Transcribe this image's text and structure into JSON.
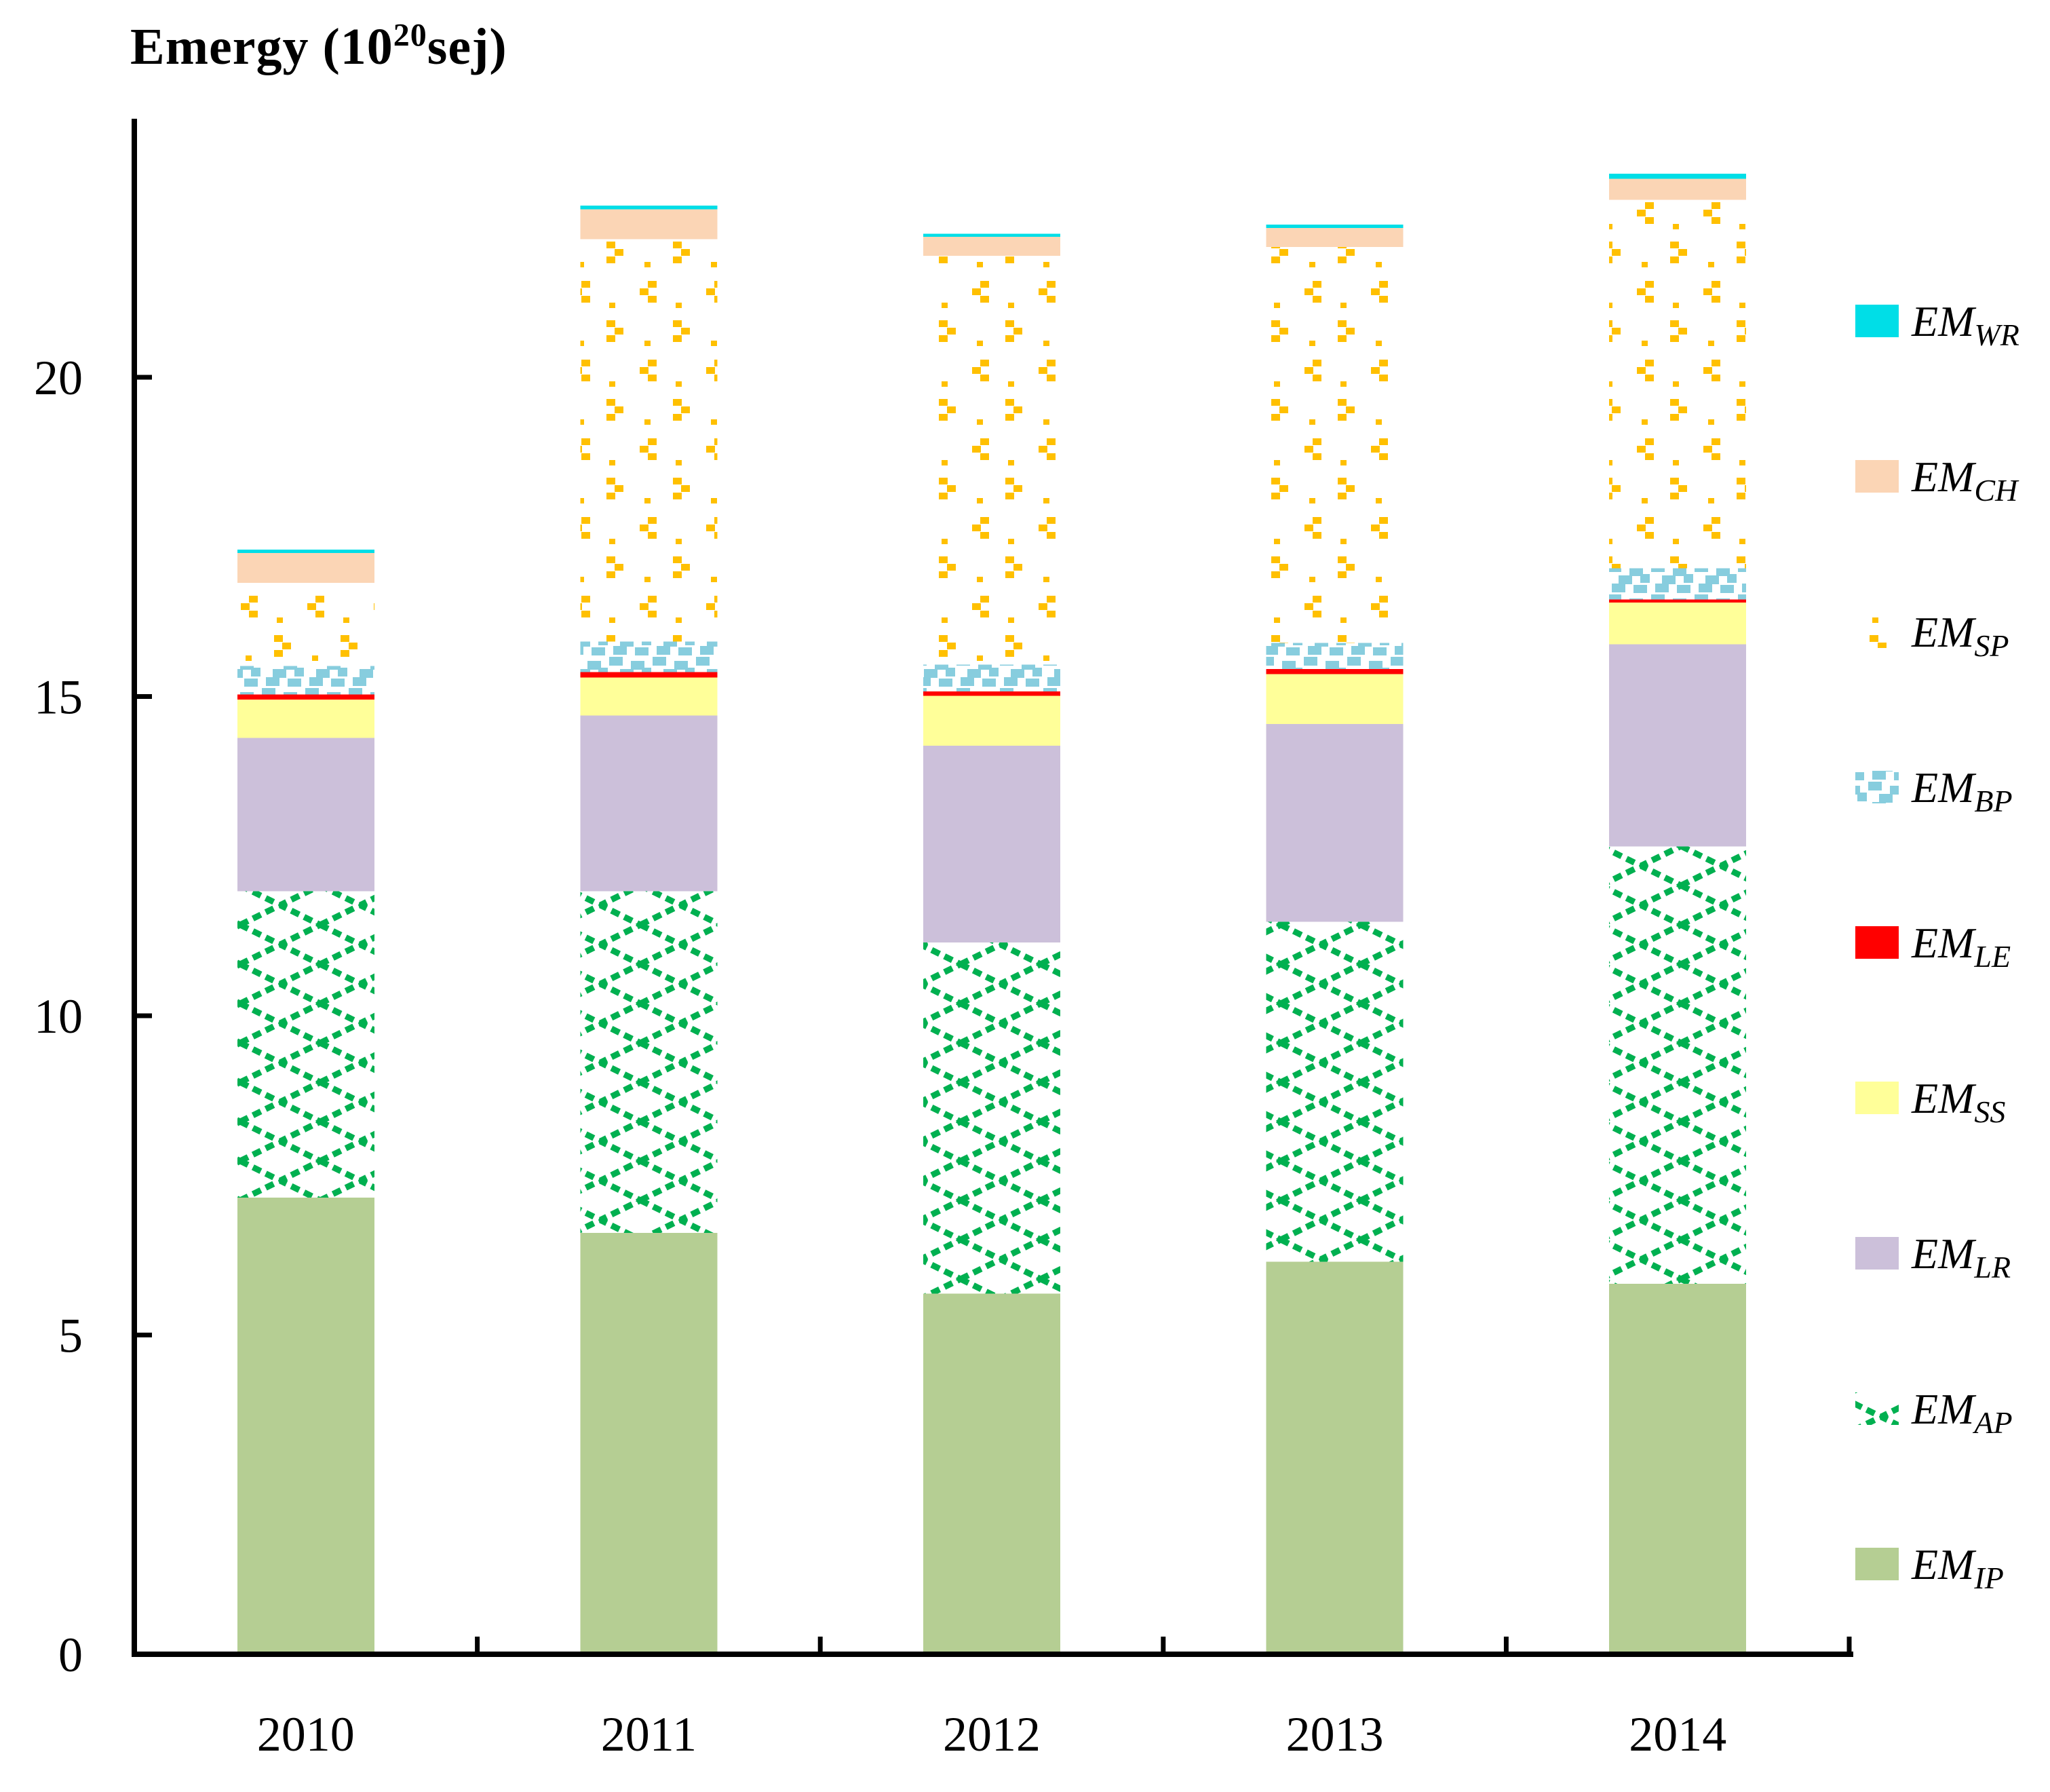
{
  "title": {
    "prefix": "Emergy (10",
    "exponent": "20",
    "suffix": "sej)"
  },
  "axis": {
    "ytick_labels": [
      "0",
      "5",
      "10",
      "15",
      "20"
    ],
    "yticks": [
      0,
      5,
      10,
      15,
      20
    ]
  },
  "chart_data": {
    "type": "bar",
    "subtype": "stacked-vertical",
    "title": "Emergy (10^20 sej)",
    "categories": [
      "2010",
      "2011",
      "2012",
      "2013",
      "2014"
    ],
    "ylim": [
      0,
      24
    ],
    "yticks": [
      0,
      5,
      10,
      15,
      20
    ],
    "grid": false,
    "legend_position": "right",
    "series_bottom_to_top": [
      {
        "name": "EM_IP",
        "label_main": "EM",
        "label_sub": "IP",
        "fill": "solid",
        "color": "#b5ce93",
        "values": [
          7.15,
          6.6,
          5.65,
          6.15,
          5.8
        ]
      },
      {
        "name": "EM_AP",
        "label_main": "EM",
        "label_sub": "AP",
        "fill": "crosshatch",
        "color": "#00b050",
        "values": [
          4.8,
          5.35,
          5.5,
          5.32,
          6.85
        ]
      },
      {
        "name": "EM_LR",
        "label_main": "EM",
        "label_sub": "LR",
        "fill": "solid",
        "color": "#ccc0da",
        "values": [
          2.4,
          2.75,
          3.08,
          3.1,
          3.17
        ]
      },
      {
        "name": "EM_SS",
        "label_main": "EM",
        "label_sub": "SS",
        "fill": "solid",
        "color": "#ffff99",
        "values": [
          0.6,
          0.6,
          0.78,
          0.78,
          0.65
        ]
      },
      {
        "name": "EM_LE",
        "label_main": "EM",
        "label_sub": "LE",
        "fill": "solid",
        "color": "#ff0000",
        "values": [
          0.08,
          0.08,
          0.07,
          0.08,
          0.05
        ]
      },
      {
        "name": "EM_BP",
        "label_main": "EM",
        "label_sub": "BP",
        "fill": "dots-bp",
        "color": "#87cdde",
        "values": [
          0.45,
          0.48,
          0.42,
          0.41,
          0.49
        ]
      },
      {
        "name": "EM_SP",
        "label_main": "EM",
        "label_sub": "SP",
        "fill": "dots-sp",
        "color": "#ffc000",
        "values": [
          1.3,
          6.3,
          6.4,
          6.2,
          5.77
        ]
      },
      {
        "name": "EM_CH",
        "label_main": "EM",
        "label_sub": "CH",
        "fill": "solid",
        "color": "#fbd5b5",
        "values": [
          0.47,
          0.47,
          0.3,
          0.3,
          0.33
        ]
      },
      {
        "name": "EM_WR",
        "label_main": "EM",
        "label_sub": "WR",
        "fill": "solid",
        "color": "#00dee7",
        "values": [
          0.05,
          0.06,
          0.05,
          0.05,
          0.08
        ]
      }
    ],
    "legend_top_to_bottom": [
      "EM_WR",
      "EM_CH",
      "EM_SP",
      "EM_BP",
      "EM_LE",
      "EM_SS",
      "EM_LR",
      "EM_AP",
      "EM_IP"
    ]
  }
}
